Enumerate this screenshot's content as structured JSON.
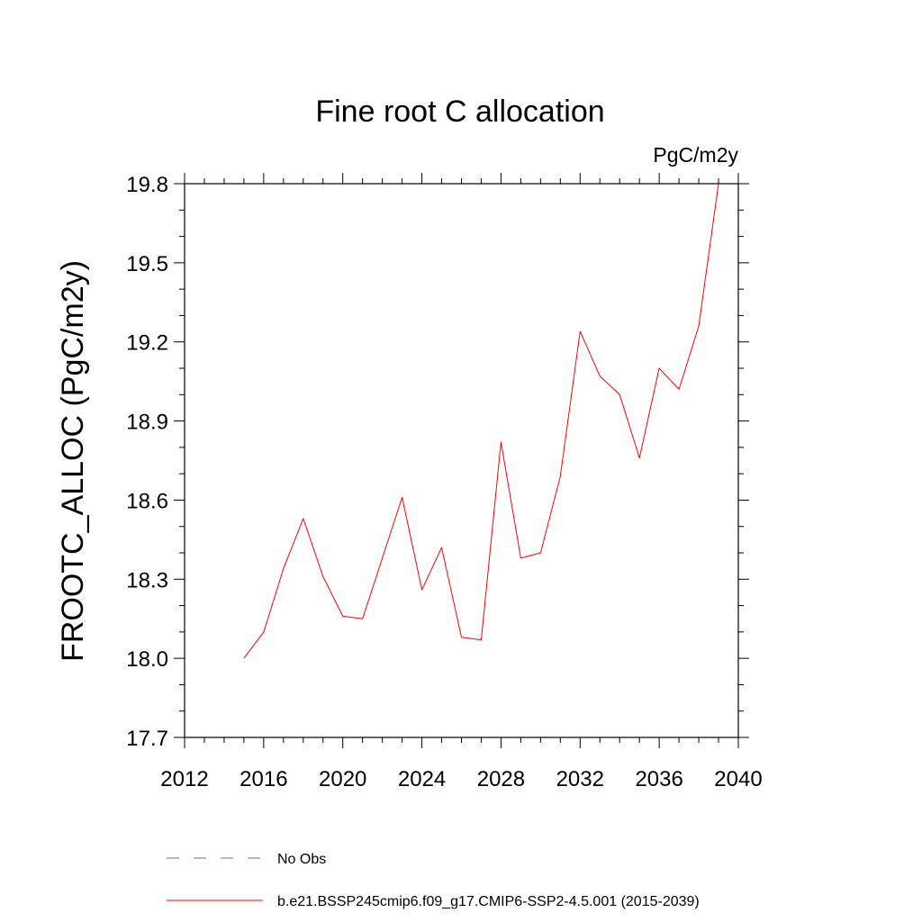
{
  "chart_data": {
    "type": "line",
    "title": "Fine root C allocation",
    "units_label": "PgC/m2y",
    "ylabel": "FROOTC_ALLOC  (PgC/m2y)",
    "xlabel": "",
    "xlim": [
      2012,
      2040
    ],
    "ylim": [
      17.7,
      19.8
    ],
    "x_ticks": [
      2012,
      2016,
      2020,
      2024,
      2028,
      2032,
      2036,
      2040
    ],
    "y_ticks": [
      17.7,
      18.0,
      18.3,
      18.6,
      18.9,
      19.2,
      19.5,
      19.8
    ],
    "x_tick_labels": [
      "2012",
      "2016",
      "2020",
      "2024",
      "2028",
      "2032",
      "2036",
      "2040"
    ],
    "y_tick_labels": [
      "17.7",
      "18.0",
      "18.3",
      "18.6",
      "18.9",
      "19.2",
      "19.5",
      "19.8"
    ],
    "grid": false,
    "legend_position": "bottom",
    "series": [
      {
        "name": "b.e21.BSSP245cmip6.f09_g17.CMIP6-SSP2-4.5.001 (2015-2039)",
        "color": "#ff0000",
        "dash": "solid",
        "x": [
          2015,
          2016,
          2017,
          2018,
          2019,
          2020,
          2021,
          2022,
          2023,
          2024,
          2025,
          2026,
          2027,
          2028,
          2029,
          2030,
          2031,
          2032,
          2033,
          2034,
          2035,
          2036,
          2037,
          2038,
          2039
        ],
        "y": [
          18.0,
          18.1,
          18.34,
          18.53,
          18.31,
          18.16,
          18.15,
          18.38,
          18.61,
          18.26,
          18.42,
          18.08,
          18.07,
          18.82,
          18.38,
          18.4,
          18.69,
          19.24,
          19.07,
          19.0,
          18.76,
          19.1,
          19.02,
          19.26,
          19.8
        ]
      }
    ],
    "legend": [
      {
        "label": "No Obs",
        "color": "#6666cc",
        "dash": "dashed"
      },
      {
        "label": "b.e21.BSSP245cmip6.f09_g17.CMIP6-SSP2-4.5.001 (2015-2039)",
        "color": "#ff0000",
        "dash": "solid"
      }
    ]
  }
}
